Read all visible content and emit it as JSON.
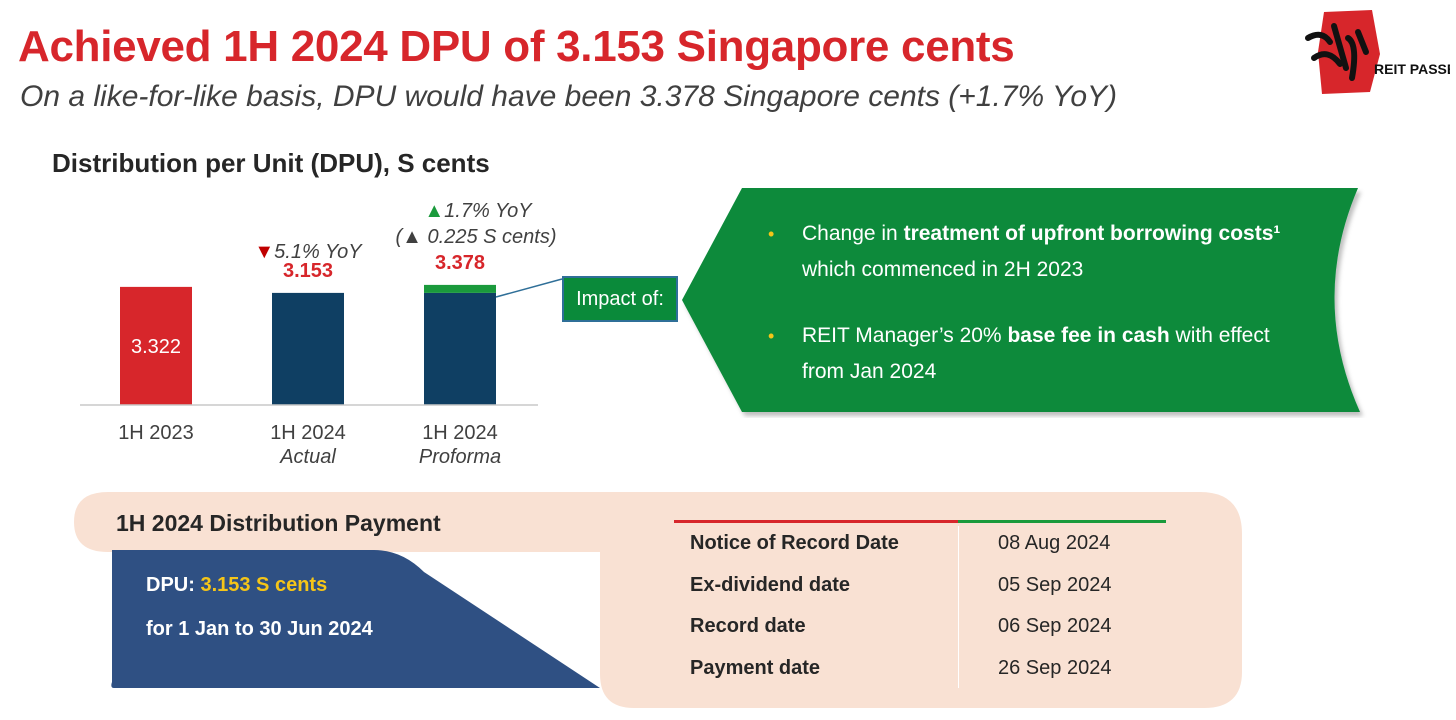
{
  "header": {
    "title": "Achieved 1H 2024 DPU of 3.153 Singapore cents",
    "subtitle": "On a like-for-like basis, DPU would have been 3.378 Singapore cents (+1.7% YoY)"
  },
  "logo": {
    "icon": "reit-passeur-logo",
    "text": "REIT PASSEUR",
    "color": "#d7262b"
  },
  "chart_data": {
    "type": "bar",
    "title": "Distribution per Unit (DPU), S cents",
    "categories": [
      {
        "label": "1H 2023",
        "sub": ""
      },
      {
        "label": "1H 2024",
        "sub": "Actual"
      },
      {
        "label": "1H 2024",
        "sub": "Proforma"
      }
    ],
    "series": [
      {
        "values": [
          3.322,
          3.153,
          3.153
        ],
        "colors": [
          "#d7262b",
          "#0f3f63",
          "#0f3f63"
        ]
      },
      {
        "values": [
          0,
          0,
          0.225
        ],
        "colors": [
          "#1a9a3c",
          "#1a9a3c",
          "#1a9a3c"
        ]
      }
    ],
    "data_labels": [
      "3.322",
      "3.153",
      "3.378"
    ],
    "annotations": {
      "actual_change": {
        "arrow": "▼",
        "text": "5.1% YoY",
        "color": "#c00000"
      },
      "proforma_change": {
        "arrow": "▲",
        "text": "1.7% YoY",
        "color": "#1a9a3c"
      },
      "proforma_increment": {
        "text": "(▲ 0.225 S cents)"
      }
    },
    "ylim": [
      0,
      3.6
    ],
    "grid": false,
    "legend": "none"
  },
  "impact": {
    "callout": "Impact of:",
    "bullet_symbol": "•",
    "bullets": [
      {
        "pre": "Change in ",
        "bold": "treatment of upfront borrowing costs¹",
        "post": "",
        "line2": "which commenced in 2H 2023"
      },
      {
        "pre": "REIT Manager’s 20% ",
        "bold": "base fee in cash",
        "post": " with effect",
        "line2": "from Jan 2024"
      }
    ],
    "color": "#0a8a3a"
  },
  "payment": {
    "heading": "1H 2024 Distribution Payment",
    "dpu_label": "DPU: ",
    "dpu_value": "3.153 S cents",
    "period": "for 1 Jan to 30 Jun 2024",
    "rows": [
      {
        "label": "Notice of Record Date",
        "value": "08 Aug 2024"
      },
      {
        "label": "Ex-dividend date",
        "value": "05 Sep 2024"
      },
      {
        "label": "Record date",
        "value": "06 Sep 2024"
      },
      {
        "label": "Payment date",
        "value": "26 Sep 2024"
      }
    ],
    "bg_color": "#f9e1d3",
    "panel_color": "#2f5083"
  }
}
